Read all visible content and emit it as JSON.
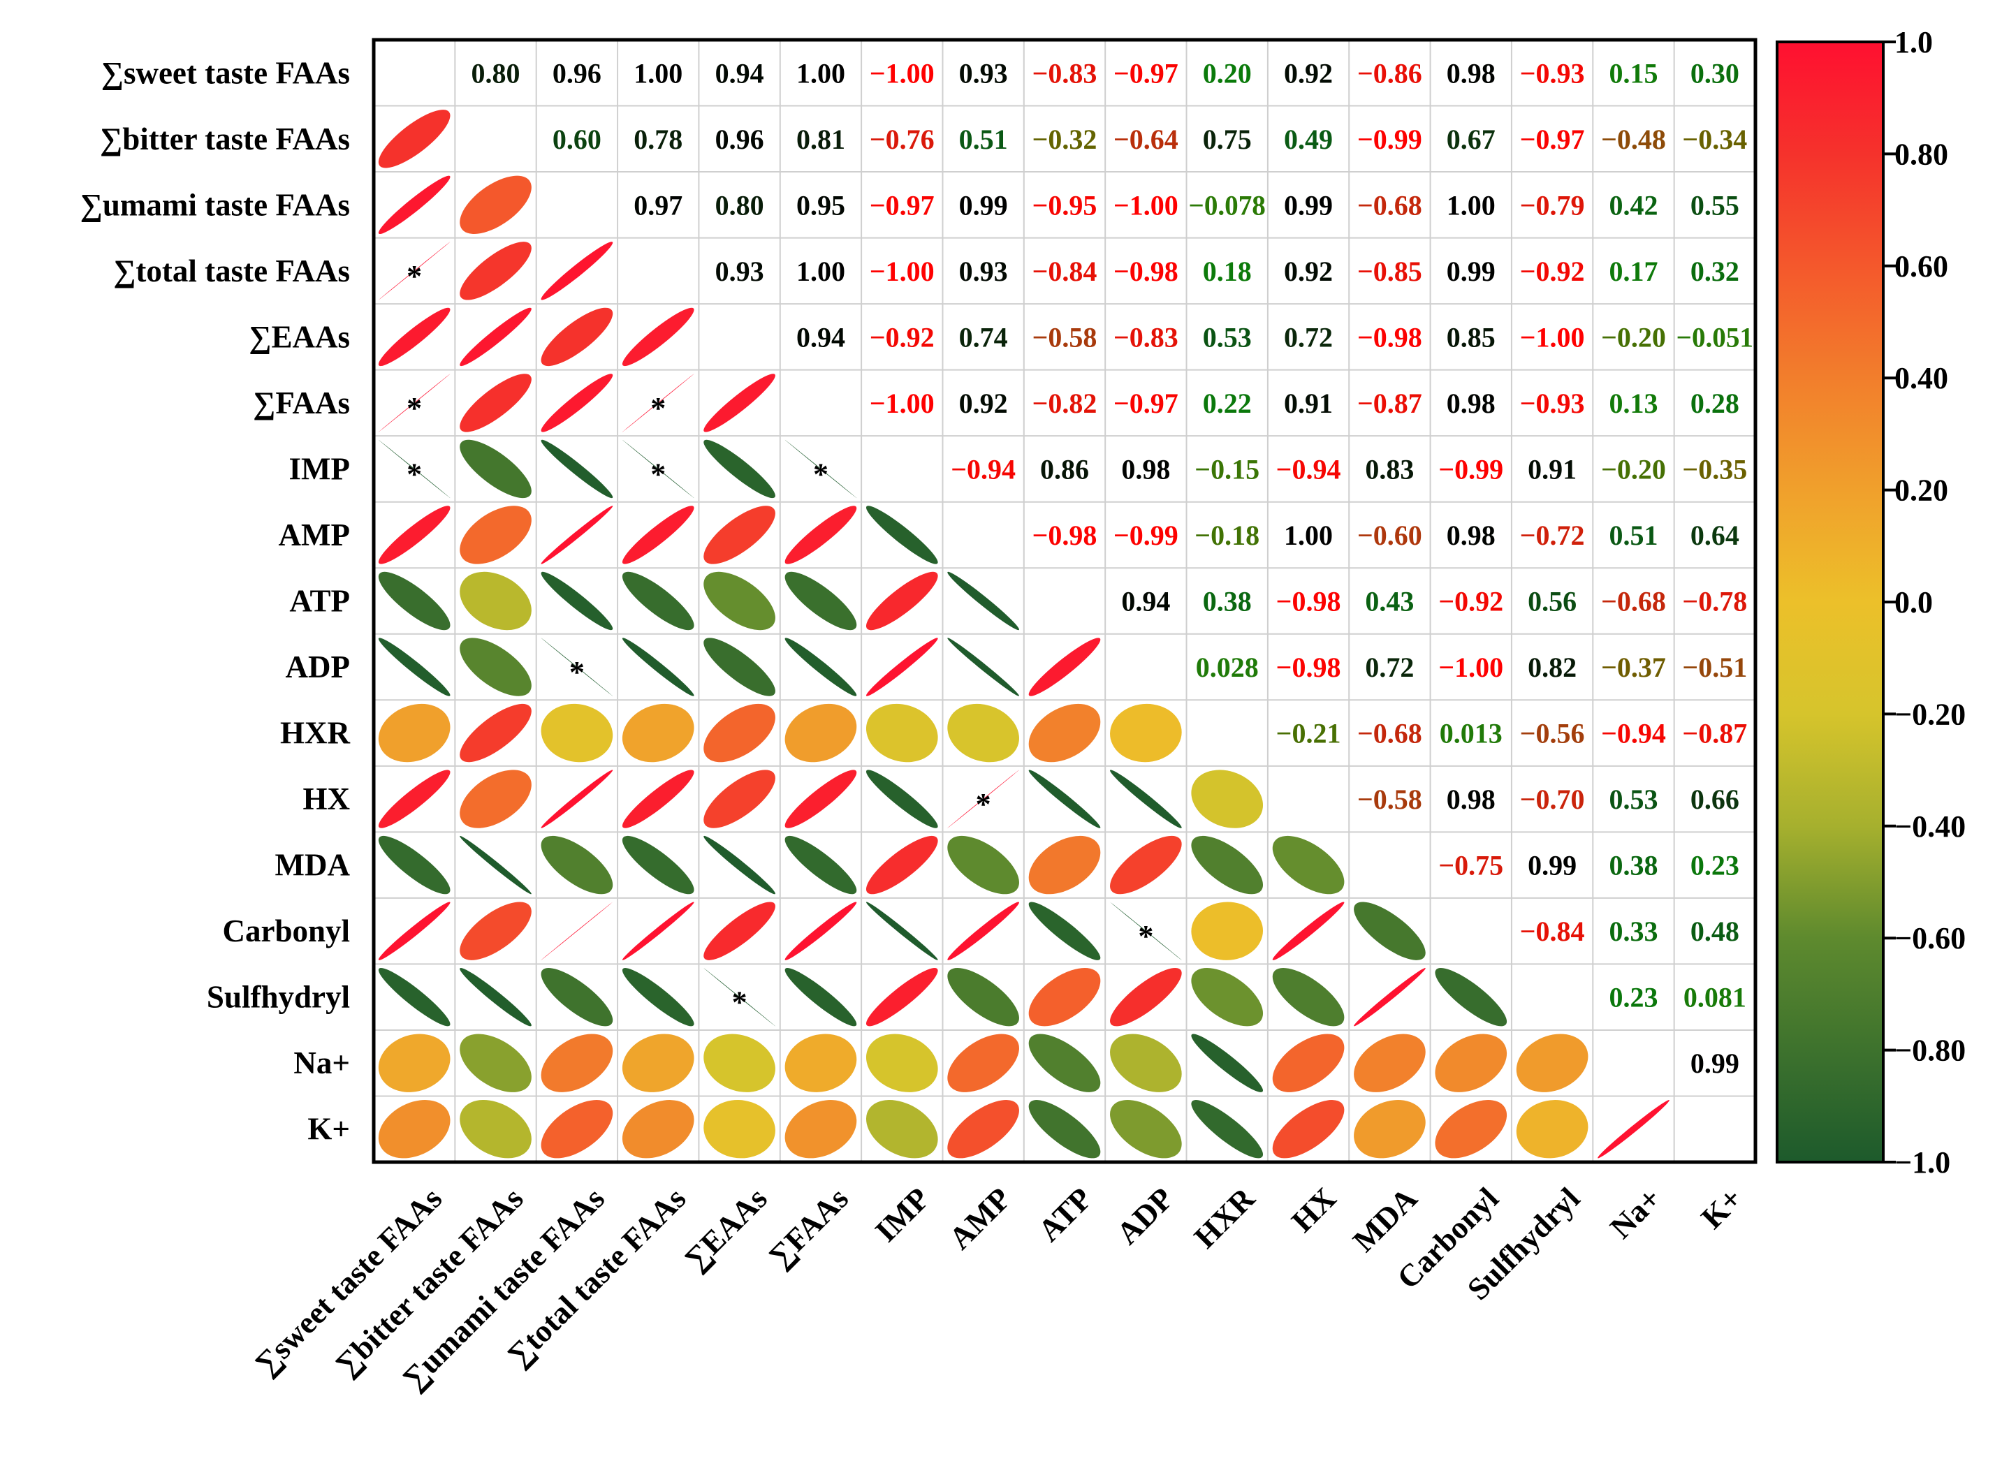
{
  "chart_data": {
    "type": "heatmap",
    "subtype": "correlation-matrix (lower: ellipses, upper: coefficients)",
    "labels": [
      "∑sweet taste FAAs",
      "∑bitter taste FAAs",
      "∑umami taste FAAs",
      "∑total taste FAAs",
      "∑EAAs",
      "∑FAAs",
      "IMP",
      "AMP",
      "ATP",
      "ADP",
      "HXR",
      "HX",
      "MDA",
      "Carbonyl",
      "Sulfhydryl",
      "Na+",
      "K+"
    ],
    "upper_values": [
      [
        "0.80",
        "0.96",
        "1.00",
        "0.94",
        "1.00",
        "−1.00",
        "0.93",
        "−0.83",
        "−0.97",
        "0.20",
        "0.92",
        "−0.86",
        "0.98",
        "−0.93",
        "0.15",
        "0.30"
      ],
      [
        "0.60",
        "0.78",
        "0.96",
        "0.81",
        "−0.76",
        "0.51",
        "−0.32",
        "−0.64",
        "0.75",
        "0.49",
        "−0.99",
        "0.67",
        "−0.97",
        "−0.48",
        "−0.34"
      ],
      [
        "0.97",
        "0.80",
        "0.95",
        "−0.97",
        "0.99",
        "−0.95",
        "−1.00",
        "−0.078",
        "0.99",
        "−0.68",
        "1.00",
        "−0.79",
        "0.42",
        "0.55"
      ],
      [
        "0.93",
        "1.00",
        "−1.00",
        "0.93",
        "−0.84",
        "−0.98",
        "0.18",
        "0.92",
        "−0.85",
        "0.99",
        "−0.92",
        "0.17",
        "0.32"
      ],
      [
        "0.94",
        "−0.92",
        "0.74",
        "−0.58",
        "−0.83",
        "0.53",
        "0.72",
        "−0.98",
        "0.85",
        "−1.00",
        "−0.20",
        "−0.051"
      ],
      [
        "−1.00",
        "0.92",
        "−0.82",
        "−0.97",
        "0.22",
        "0.91",
        "−0.87",
        "0.98",
        "−0.93",
        "0.13",
        "0.28"
      ],
      [
        "−0.94",
        "0.86",
        "0.98",
        "−0.15",
        "−0.94",
        "0.83",
        "−0.99",
        "0.91",
        "−0.20",
        "−0.35"
      ],
      [
        "−0.98",
        "−0.99",
        "−0.18",
        "1.00",
        "−0.60",
        "0.98",
        "−0.72",
        "0.51",
        "0.64"
      ],
      [
        "0.94",
        "0.38",
        "−0.98",
        "0.43",
        "−0.92",
        "0.56",
        "−0.68",
        "−0.78"
      ],
      [
        "0.028",
        "−0.98",
        "0.72",
        "−1.00",
        "0.82",
        "−0.37",
        "−0.51"
      ],
      [
        "−0.21",
        "−0.68",
        "0.013",
        "−0.56",
        "−0.94",
        "−0.87"
      ],
      [
        "−0.58",
        "0.98",
        "−0.70",
        "0.53",
        "0.66"
      ],
      [
        "−0.75",
        "0.99",
        "0.38",
        "0.23"
      ],
      [
        "−0.84",
        "0.33",
        "0.48"
      ],
      [
        "0.23",
        "0.081"
      ],
      [
        "0.99"
      ],
      []
    ],
    "significance_marker": "*",
    "significant_pairs_lower": [
      [
        3,
        0
      ],
      [
        5,
        0
      ],
      [
        5,
        3
      ],
      [
        6,
        0
      ],
      [
        6,
        3
      ],
      [
        6,
        5
      ],
      [
        9,
        2
      ],
      [
        11,
        7
      ],
      [
        13,
        9
      ],
      [
        14,
        4
      ]
    ],
    "colorbar": {
      "range": [
        -1.0,
        1.0
      ],
      "ticks": [
        "1.0",
        "0.80",
        "0.60",
        "0.40",
        "0.20",
        "0.0",
        "−0.20",
        "−0.40",
        "−0.60",
        "−0.80",
        "−1.0"
      ],
      "colors": {
        "neg1": "#1d5a2c",
        "neg06": "#5e8a2e",
        "neg04": "#a6b02e",
        "neg02": "#d6c42c",
        "zero": "#ecc02a",
        "pos02": "#f0a02c",
        "pos04": "#f27e2c",
        "pos06": "#f4582c",
        "pos08": "#f5322c",
        "pos1": "#ff1030"
      }
    }
  }
}
